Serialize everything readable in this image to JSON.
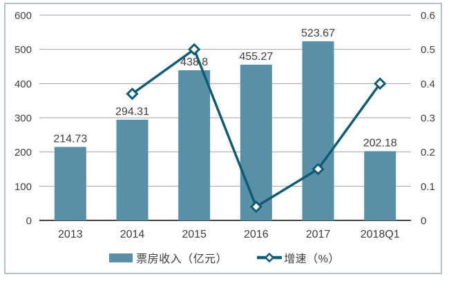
{
  "chart_data": {
    "type": "bar+line combo",
    "title": "",
    "categories": [
      "2013",
      "2014",
      "2015",
      "2016",
      "2017",
      "2018Q1"
    ],
    "series": [
      {
        "name": "票房收入（亿元）",
        "type": "bar",
        "axis": "left",
        "values": [
          214.73,
          294.31,
          438.8,
          455.27,
          523.67,
          202.18
        ],
        "labels": [
          "214.73",
          "294.31",
          "438.8",
          "455.27",
          "523.67",
          "202.18"
        ]
      },
      {
        "name": "增速（%）",
        "type": "line",
        "axis": "right",
        "marker": "diamond",
        "values": [
          null,
          0.37,
          0.5,
          0.04,
          0.15,
          0.4
        ]
      }
    ],
    "left_axis": {
      "min": 0,
      "max": 600,
      "tick_step": 100,
      "ticks": [
        "600",
        "500",
        "400",
        "300",
        "200",
        "100",
        "0"
      ]
    },
    "right_axis": {
      "min": 0,
      "max": 0.6,
      "tick_step": 0.1,
      "ticks": [
        "0.6",
        "0.5",
        "0.4",
        "0.3",
        "0.2",
        "0.1",
        "0"
      ]
    },
    "legend_position": "bottom",
    "grid": true,
    "colors": {
      "bar": "#5890a8",
      "line": "#0e5b74",
      "marker_fill": "#ffffff",
      "grid": "#a3a3a3",
      "axis_line": "#404040",
      "text": "#3d3d3d",
      "frame_border": "#b6bfc5"
    }
  }
}
